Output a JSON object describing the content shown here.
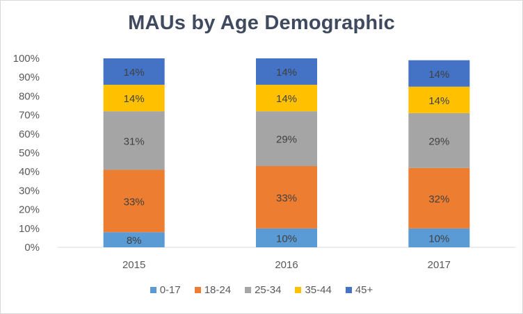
{
  "chart_data": {
    "type": "bar",
    "stacked": "percent",
    "title": "MAUs by Age Demographic",
    "categories": [
      "2015",
      "2016",
      "2017"
    ],
    "y_tick_labels": [
      "0%",
      "10%",
      "20%",
      "30%",
      "40%",
      "50%",
      "60%",
      "70%",
      "80%",
      "90%",
      "100%"
    ],
    "ylim": [
      0,
      100
    ],
    "grid": false,
    "legend_position": "bottom",
    "series": [
      {
        "name": "0-17",
        "color": "#5b9bd5",
        "values": [
          8,
          10,
          10
        ],
        "labels": [
          "8%",
          "10%",
          "10%"
        ]
      },
      {
        "name": "18-24",
        "color": "#ed7d31",
        "values": [
          33,
          33,
          32
        ],
        "labels": [
          "33%",
          "33%",
          "32%"
        ]
      },
      {
        "name": "25-34",
        "color": "#a5a5a5",
        "values": [
          31,
          29,
          29
        ],
        "labels": [
          "31%",
          "29%",
          "29%"
        ]
      },
      {
        "name": "35-44",
        "color": "#ffc000",
        "values": [
          14,
          14,
          14
        ],
        "labels": [
          "14%",
          "14%",
          "14%"
        ]
      },
      {
        "name": "45+",
        "color": "#4472c4",
        "values": [
          14,
          14,
          14
        ],
        "labels": [
          "14%",
          "14%",
          "14%"
        ]
      }
    ]
  }
}
